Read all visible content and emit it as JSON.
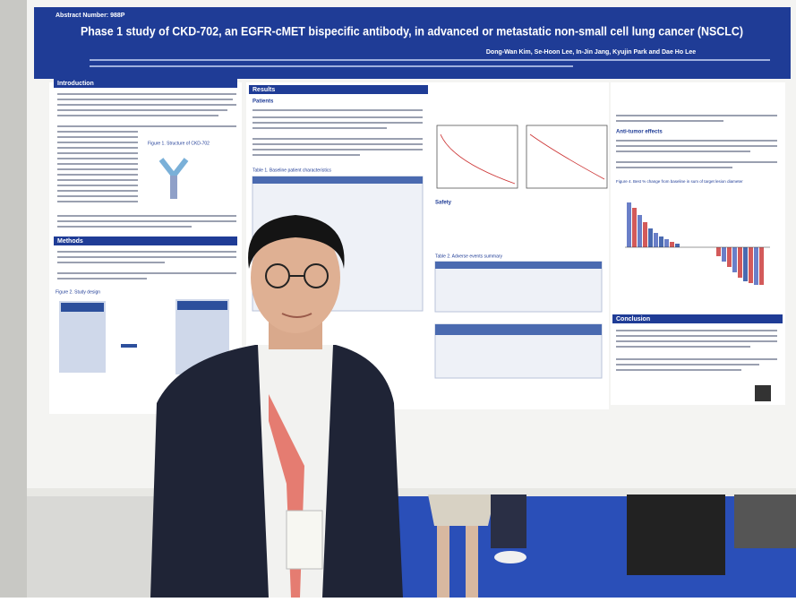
{
  "poster": {
    "abstract_number": "Abstract Number: 988P",
    "title": "Phase 1 study of CKD-702, an EGFR-cMET bispecific antibody, in advanced or metastatic non-small cell lung cancer (NSCLC)",
    "authors": "Dong-Wan Kim, Se-Hoon Lee, In-Jin Jang, Kyujin Park and Dae Ho Lee",
    "sections": {
      "introduction": "Introduction",
      "methods": "Methods",
      "results": "Results",
      "patients": "Patients",
      "safety": "Safety",
      "anti_tumor": "Anti-tumor effects",
      "conclusion": "Conclusion"
    },
    "figures": {
      "fig1": "Figure 1. Structure of CKD-702",
      "fig2": "Figure 2. Study design",
      "table1": "Table 1. Baseline patient characteristics",
      "table2": "Table 2. Adverse events summary",
      "fig4": "Figure 4. Best % change from baseline in sum of target lesion diameter"
    }
  }
}
